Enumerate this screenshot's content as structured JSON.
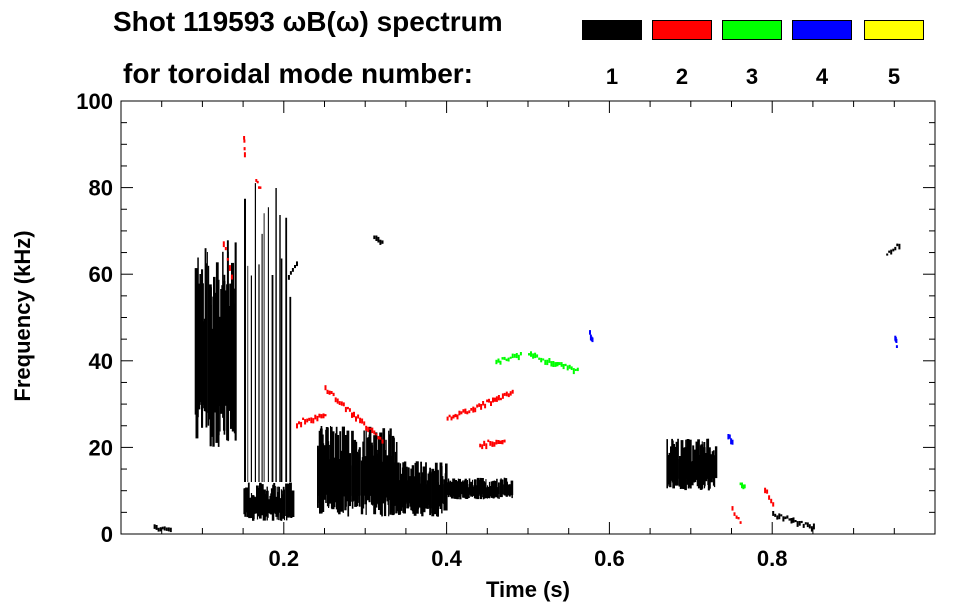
{
  "header": {
    "title_line1": "Shot 119593 ωB(ω) spectrum",
    "title_line2": "for toroidal mode number:"
  },
  "legend": [
    {
      "label": "1",
      "color": "#000000"
    },
    {
      "label": "2",
      "color": "#ff0000"
    },
    {
      "label": "3",
      "color": "#00ff00"
    },
    {
      "label": "4",
      "color": "#0000ff"
    },
    {
      "label": "5",
      "color": "#ffff00"
    }
  ],
  "chart_data": {
    "type": "scatter",
    "title": "Shot 119593 ωB(ω) spectrum for toroidal mode number",
    "xlabel": "Time (s)",
    "ylabel": "Frequency (kHz)",
    "xlim": [
      0.0,
      1.0
    ],
    "ylim": [
      0,
      100
    ],
    "xticks": [
      0.2,
      0.4,
      0.6,
      0.8
    ],
    "xtick_labels": [
      "0.2",
      "0.4",
      "0.6",
      "0.8"
    ],
    "yticks": [
      0,
      20,
      40,
      60,
      80,
      100
    ],
    "ytick_labels": [
      "0",
      "20",
      "40",
      "60",
      "80",
      "100"
    ],
    "series": [
      {
        "name": "1",
        "color": "#000000",
        "marks": [
          {
            "kind": "cloud",
            "x": [
              0.09,
              0.14
            ],
            "y": [
              20,
              68
            ]
          },
          {
            "kind": "cloud",
            "x": [
              0.15,
              0.21
            ],
            "y": [
              3,
              12
            ]
          },
          {
            "kind": "cloud",
            "x": [
              0.24,
              0.34
            ],
            "y": [
              4,
              25
            ]
          },
          {
            "kind": "cloud",
            "x": [
              0.33,
              0.4
            ],
            "y": [
              4,
              17
            ]
          },
          {
            "kind": "cloud",
            "x": [
              0.4,
              0.48
            ],
            "y": [
              8,
              13
            ]
          },
          {
            "kind": "spikes",
            "x": [
              0.15,
              0.21
            ],
            "y": [
              12,
              83
            ]
          },
          {
            "kind": "line",
            "x": [
              0.205,
              0.215
            ],
            "y": [
              60,
              63
            ]
          },
          {
            "kind": "line",
            "x": [
              0.31,
              0.32
            ],
            "y": [
              69,
              68
            ]
          },
          {
            "kind": "cloud",
            "x": [
              0.67,
              0.73
            ],
            "y": [
              10,
              22
            ]
          },
          {
            "kind": "line",
            "x": [
              0.8,
              0.85
            ],
            "y": [
              5,
              2
            ]
          },
          {
            "kind": "line",
            "x": [
              0.94,
              0.955
            ],
            "y": [
              65,
              67
            ]
          },
          {
            "kind": "line",
            "x": [
              0.04,
              0.06
            ],
            "y": [
              2,
              1
            ]
          }
        ]
      },
      {
        "name": "2",
        "color": "#ff0000",
        "marks": [
          {
            "kind": "line",
            "x": [
              0.15,
              0.151
            ],
            "y": [
              92,
              88
            ]
          },
          {
            "kind": "line",
            "x": [
              0.125,
              0.135
            ],
            "y": [
              68,
              60
            ]
          },
          {
            "kind": "line",
            "x": [
              0.215,
              0.25
            ],
            "y": [
              26,
              28
            ]
          },
          {
            "kind": "line",
            "x": [
              0.25,
              0.32
            ],
            "y": [
              34,
              22
            ]
          },
          {
            "kind": "line",
            "x": [
              0.4,
              0.48
            ],
            "y": [
              27,
              33
            ]
          },
          {
            "kind": "line",
            "x": [
              0.44,
              0.47
            ],
            "y": [
              21,
              22
            ]
          },
          {
            "kind": "line",
            "x": [
              0.79,
              0.8
            ],
            "y": [
              11,
              7
            ]
          },
          {
            "kind": "line",
            "x": [
              0.75,
              0.76
            ],
            "y": [
              6,
              3
            ]
          },
          {
            "kind": "line",
            "x": [
              0.165,
              0.17
            ],
            "y": [
              82,
              80
            ]
          }
        ]
      },
      {
        "name": "3",
        "color": "#00ff00",
        "marks": [
          {
            "kind": "line",
            "x": [
              0.46,
              0.49
            ],
            "y": [
              40,
              42
            ]
          },
          {
            "kind": "line",
            "x": [
              0.5,
              0.56
            ],
            "y": [
              42,
              38
            ]
          },
          {
            "kind": "line",
            "x": [
              0.76,
              0.765
            ],
            "y": [
              12,
              11
            ]
          }
        ]
      },
      {
        "name": "4",
        "color": "#0000ff",
        "marks": [
          {
            "kind": "line",
            "x": [
              0.575,
              0.578
            ],
            "y": [
              47,
              45
            ]
          },
          {
            "kind": "line",
            "x": [
              0.745,
              0.75
            ],
            "y": [
              23,
              22
            ]
          },
          {
            "kind": "line",
            "x": [
              0.95,
              0.952
            ],
            "y": [
              46,
              44
            ]
          }
        ]
      },
      {
        "name": "5",
        "color": "#ffff00",
        "marks": []
      }
    ]
  }
}
